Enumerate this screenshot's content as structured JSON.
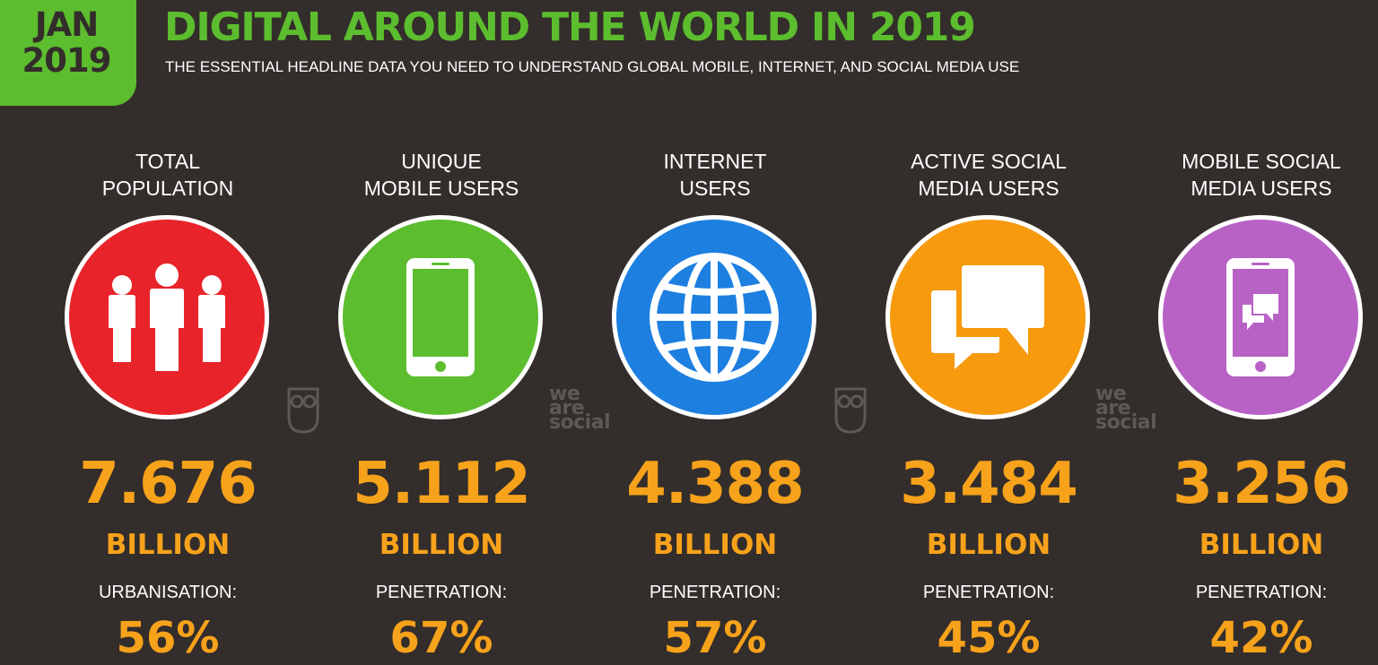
{
  "header": {
    "date_line1": "JAN",
    "date_line2": "2019",
    "title": "DIGITAL AROUND THE WORLD IN 2019",
    "subtitle": "THE ESSENTIAL HEADLINE DATA YOU NEED TO UNDERSTAND GLOBAL MOBILE, INTERNET, AND SOCIAL MEDIA USE"
  },
  "logos": {
    "wearesocial": [
      "we",
      "are",
      "social"
    ]
  },
  "colors": {
    "background": "#332d2b",
    "brand_green": "#5cbd2e",
    "accent_orange": "#f7a21b"
  },
  "stats": [
    {
      "label_line1": "TOTAL",
      "label_line2": "POPULATION",
      "icon": "people-icon",
      "circle_color": "#e8232a",
      "value": "7.676",
      "unit": "BILLION",
      "metric_label": "URBANISATION:",
      "metric_value": "56%"
    },
    {
      "label_line1": "UNIQUE",
      "label_line2": "MOBILE USERS",
      "icon": "mobile-phone-icon",
      "circle_color": "#5cbd2e",
      "value": "5.112",
      "unit": "BILLION",
      "metric_label": "PENETRATION:",
      "metric_value": "67%"
    },
    {
      "label_line1": "INTERNET",
      "label_line2": "USERS",
      "icon": "globe-icon",
      "circle_color": "#1d7fe0",
      "value": "4.388",
      "unit": "BILLION",
      "metric_label": "PENETRATION:",
      "metric_value": "57%"
    },
    {
      "label_line1": "ACTIVE SOCIAL",
      "label_line2": "MEDIA USERS",
      "icon": "chat-bubbles-icon",
      "circle_color": "#f79a0e",
      "value": "3.484",
      "unit": "BILLION",
      "metric_label": "PENETRATION:",
      "metric_value": "45%"
    },
    {
      "label_line1": "MOBILE SOCIAL",
      "label_line2": "MEDIA USERS",
      "icon": "mobile-chat-icon",
      "circle_color": "#b862c6",
      "value": "3.256",
      "unit": "BILLION",
      "metric_label": "PENETRATION:",
      "metric_value": "42%"
    }
  ]
}
